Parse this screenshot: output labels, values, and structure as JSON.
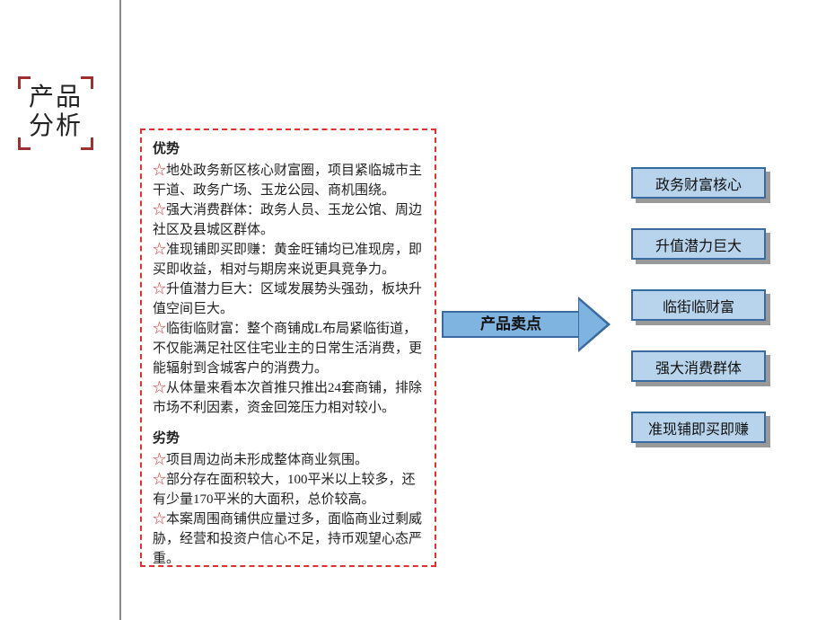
{
  "colors": {
    "title_corner": "#a03030",
    "dashed_border": "#e03030",
    "star": "#e03030",
    "arrow_fill": "#7fb4e0",
    "arrow_border": "#3a6aa0",
    "box_fill": "#b8d4ec",
    "box_border": "#3a6aa0",
    "shadow": "#999999",
    "divider": "#888888"
  },
  "title": {
    "line1": "产品",
    "line2": "分析"
  },
  "advantages_heading": "优势",
  "advantages": [
    "地处政务新区核心财富圈，项目紧临城市主干道、政务广场、玉龙公园、商机围绕。",
    "强大消费群体：政务人员、玉龙公馆、周边社区及县城区群体。",
    "准现铺即买即赚：黄金旺铺均已准现房，即买即收益，相对与期房来说更具竞争力。",
    "升值潜力巨大：区域发展势头强劲，板块升值空间巨大。",
    "临街临财富：整个商铺成L布局紧临街道，不仅能满足社区住宅业主的日常生活消费，更能辐射到含城客户的消费力。",
    "从体量来看本次首推只推出24套商铺，排除市场不利因素，资金回笼压力相对较小。"
  ],
  "disadvantages_heading": "劣势",
  "disadvantages": [
    "项目周边尚未形成整体商业氛围。",
    "部分存在面积较大，100平米以上较多，还有少量170平米的大面积，总价较高。",
    "本案周围商铺供应量过多，面临商业过剩威胁，经营和投资户信心不足，持币观望心态严重。"
  ],
  "arrow_label": "产品卖点",
  "selling_points": [
    "政务财富核心",
    "升值潜力巨大",
    "临街临财富",
    "强大消费群体",
    "准现铺即买即赚"
  ]
}
